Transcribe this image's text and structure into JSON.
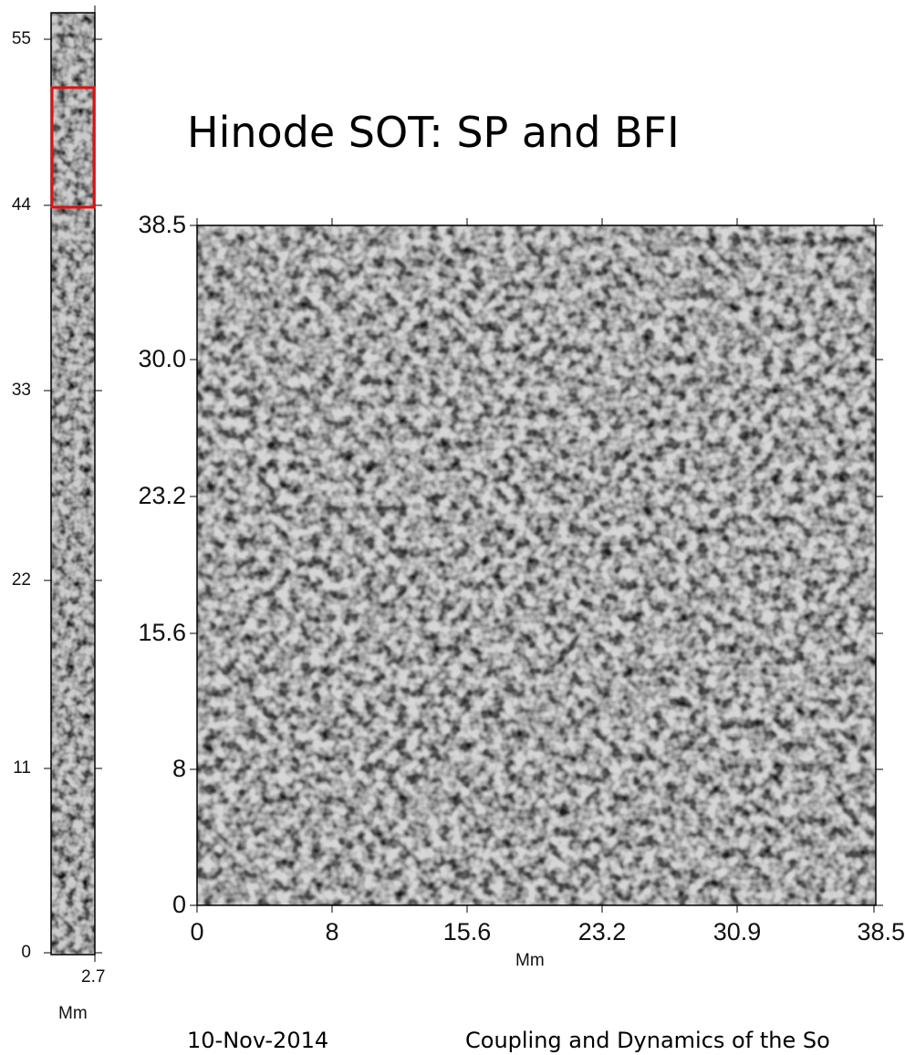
{
  "title": "Hinode SOT: SP and BFI",
  "footer": {
    "date": "10-Nov-2014",
    "conference": "Coupling and Dynamics of the So"
  },
  "sp_strip": {
    "y_ticks": [
      "55",
      "44",
      "33",
      "22",
      "11",
      "0"
    ],
    "x_tick": "2.7",
    "x_unit": "Mm",
    "selection_box_color": "#e01010"
  },
  "bfi_image": {
    "y_ticks": [
      "38.5",
      "30.0",
      "23.2",
      "15.6",
      "8",
      "0"
    ],
    "x_ticks": [
      "0",
      "8",
      "15.6",
      "23.2",
      "30.9",
      "38.5"
    ],
    "x_unit": "Mm"
  }
}
